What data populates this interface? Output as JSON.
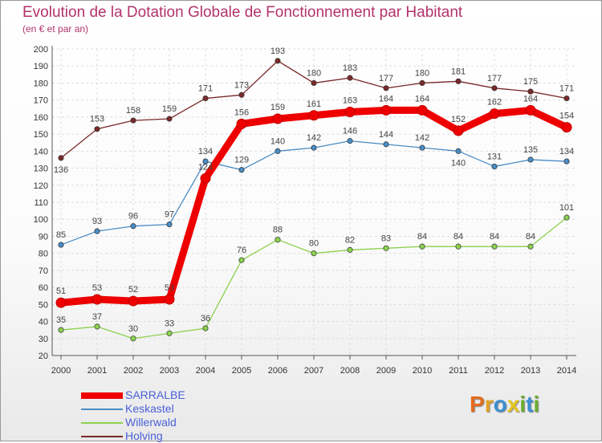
{
  "title": "Evolution de la Dotation Globale de Fonctionnement par Habitant",
  "subtitle": "(en € et par an)",
  "logo_text": "Proxiti",
  "logo_letters": [
    "P",
    "r",
    "o",
    "x",
    "i",
    "t",
    "i"
  ],
  "logo_colors": [
    "#e36c1e",
    "#e3a21e",
    "#3a8fd1",
    "#e3c31e",
    "#6aae2e",
    "#3a8fd1",
    "#6aae2e"
  ],
  "chart_data": {
    "type": "line",
    "title": "Evolution de la Dotation Globale de Fonctionnement par Habitant",
    "subtitle": "(en € et par an)",
    "xlabel": "",
    "ylabel": "",
    "ylim": [
      20,
      200
    ],
    "y_ticks": [
      20,
      30,
      40,
      50,
      60,
      70,
      80,
      90,
      100,
      110,
      120,
      130,
      140,
      150,
      160,
      170,
      180,
      190,
      200
    ],
    "x": [
      "2000",
      "2001",
      "2002",
      "2003",
      "2004",
      "2005",
      "2006",
      "2007",
      "2008",
      "2009",
      "2010",
      "2011",
      "2012",
      "2013",
      "2014"
    ],
    "grid": true,
    "legend_position": "bottom-left",
    "series": [
      {
        "name": "Holving",
        "color": "#7a2a2a",
        "values": [
          136,
          153,
          158,
          159,
          171,
          173,
          193,
          180,
          183,
          177,
          180,
          181,
          177,
          175,
          171
        ]
      },
      {
        "name": "Keskastel",
        "color": "#4a8cc4",
        "values": [
          85,
          93,
          96,
          97,
          134,
          129,
          140,
          142,
          146,
          144,
          142,
          140,
          131,
          135,
          134
        ]
      },
      {
        "name": "Willerwald",
        "color": "#8bd14e",
        "values": [
          35,
          37,
          30,
          33,
          36,
          76,
          88,
          80,
          82,
          83,
          84,
          84,
          84,
          84,
          101
        ]
      },
      {
        "name": "SARRALBE",
        "color": "#ee0000",
        "values": [
          51,
          53,
          52,
          53,
          124,
          156,
          159,
          161,
          163,
          164,
          164,
          152,
          162,
          164,
          154
        ]
      }
    ],
    "legend": [
      "SARRALBE",
      "Keskastel",
      "Willerwald",
      "Holving"
    ]
  }
}
